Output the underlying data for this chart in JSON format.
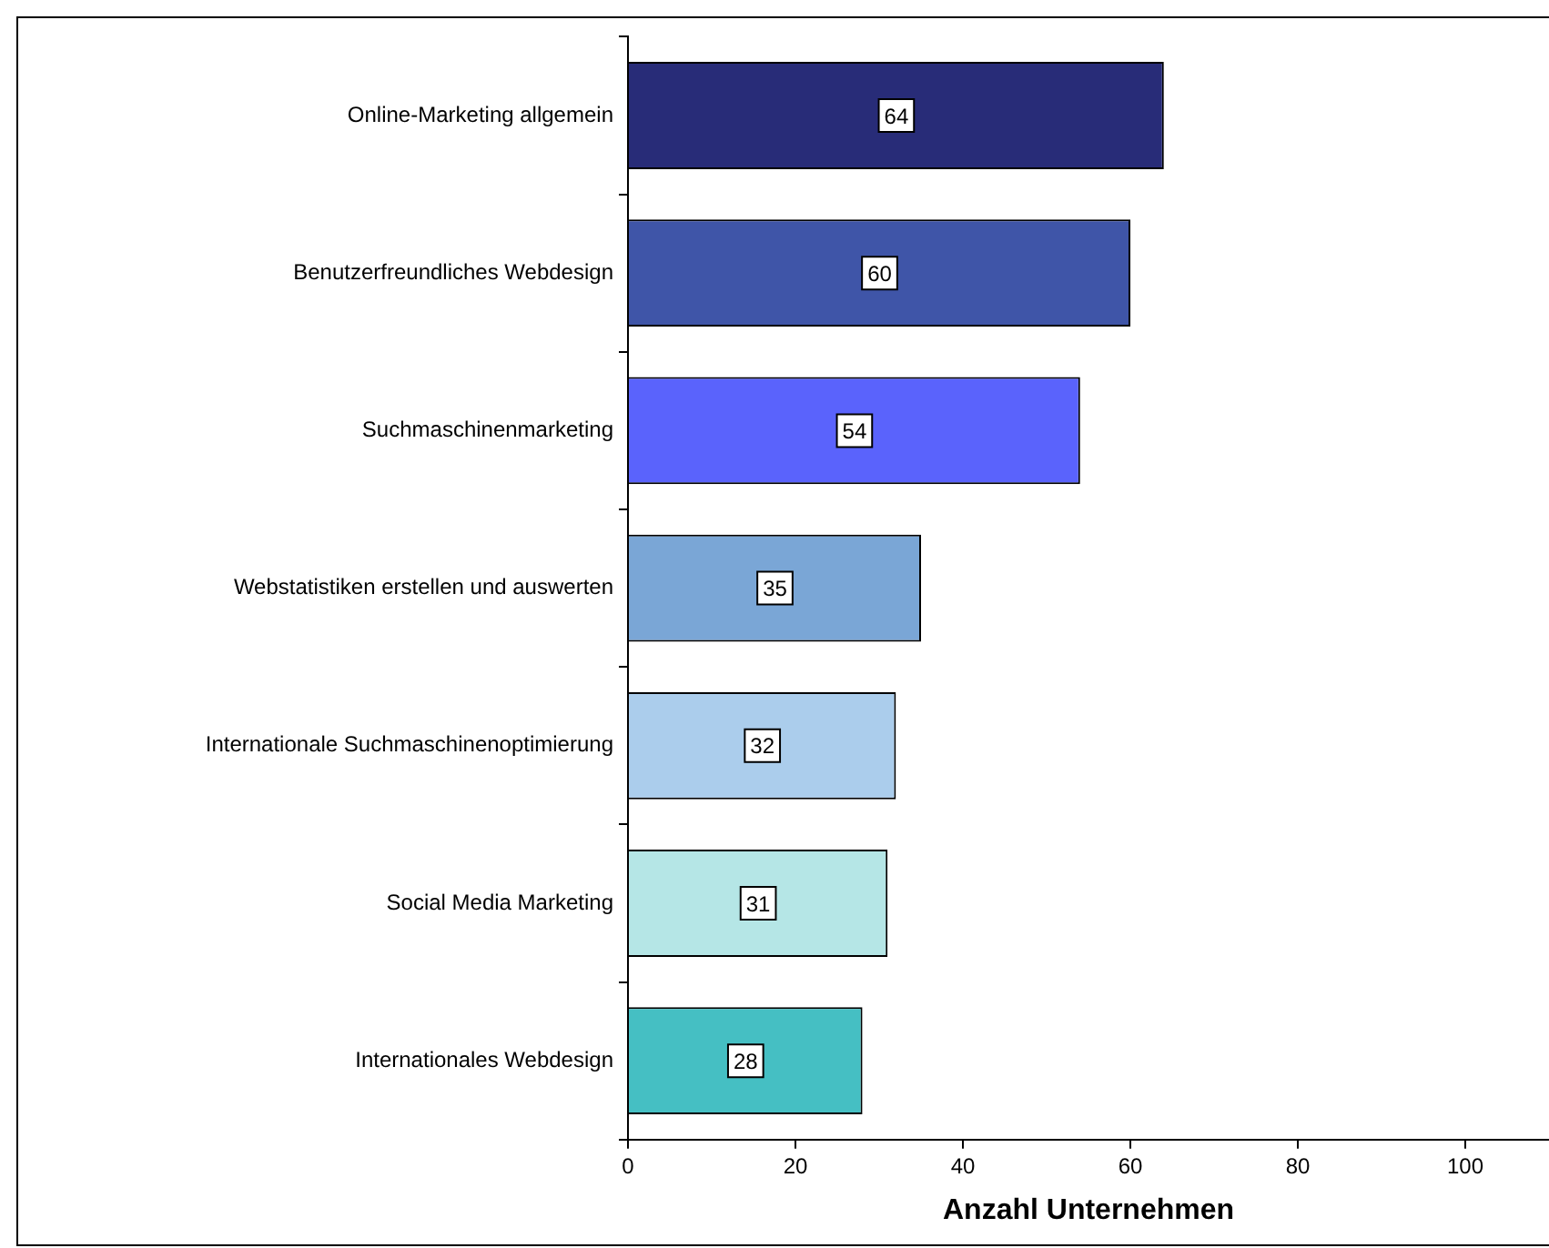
{
  "chart_data": {
    "type": "bar",
    "orientation": "horizontal",
    "xlabel": "Anzahl Unternehmen",
    "categories": [
      "Online-Marketing allgemein",
      "Benutzerfreundliches Webdesign",
      "Suchmaschinenmarketing",
      "Webstatistiken erstellen und auswerten",
      "Internationale Suchmaschinenoptimierung",
      "Social Media Marketing",
      "Internationales Webdesign"
    ],
    "values": [
      64,
      60,
      54,
      35,
      32,
      31,
      28
    ],
    "colors": [
      "#282c78",
      "#3f55a8",
      "#5a63fc",
      "#7aa6d6",
      "#abcdec",
      "#b5e6e6",
      "#45bfc3"
    ],
    "xlim": [
      0,
      110
    ],
    "xticks": [
      0,
      20,
      40,
      60,
      80,
      100
    ],
    "data_labels": true,
    "grid": false,
    "legend": false
  }
}
